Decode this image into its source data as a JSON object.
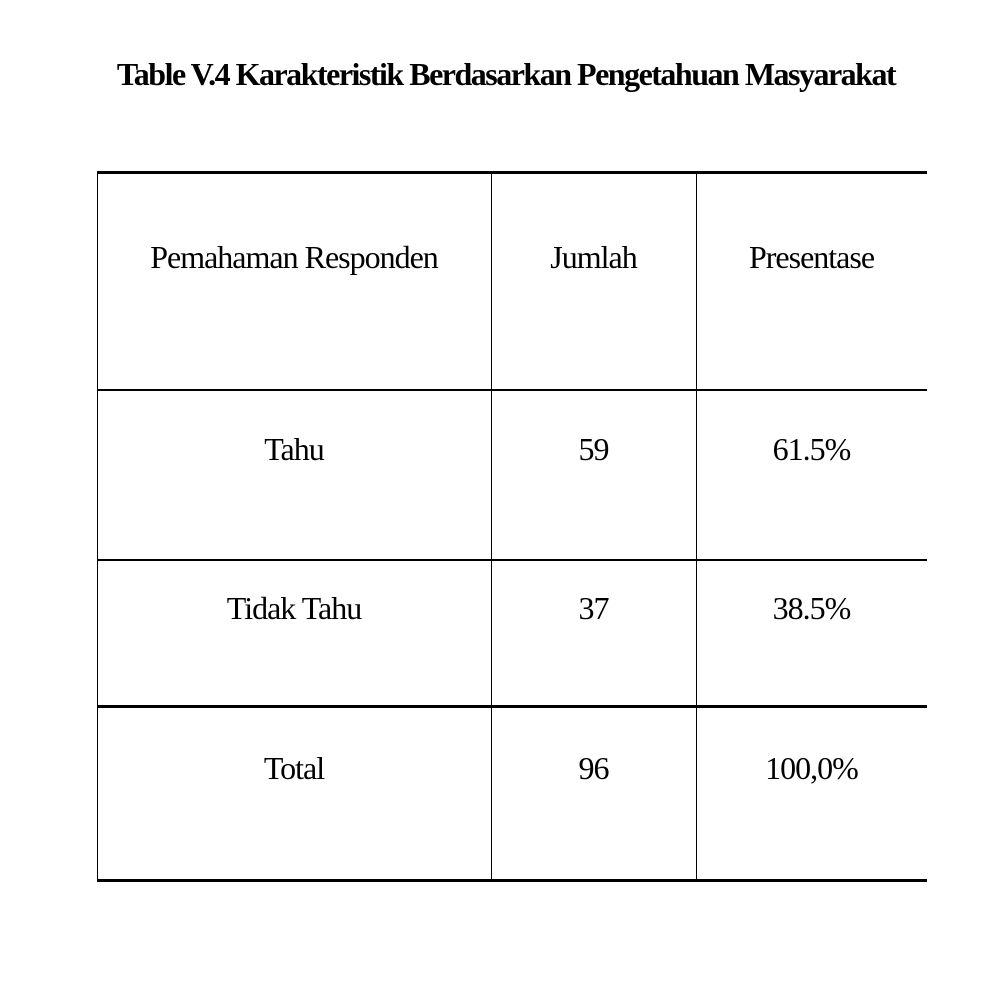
{
  "title": "Table V.4 Karakteristik Berdasarkan Pengetahuan Masyarakat",
  "table": {
    "headers": [
      "Pemahaman Responden",
      "Jumlah",
      "Presentase"
    ],
    "rows": [
      [
        "Tahu",
        "59",
        "61.5%"
      ],
      [
        "Tidak Tahu",
        "37",
        "38.5%"
      ],
      [
        "Total",
        "96",
        "100,0%"
      ]
    ]
  }
}
